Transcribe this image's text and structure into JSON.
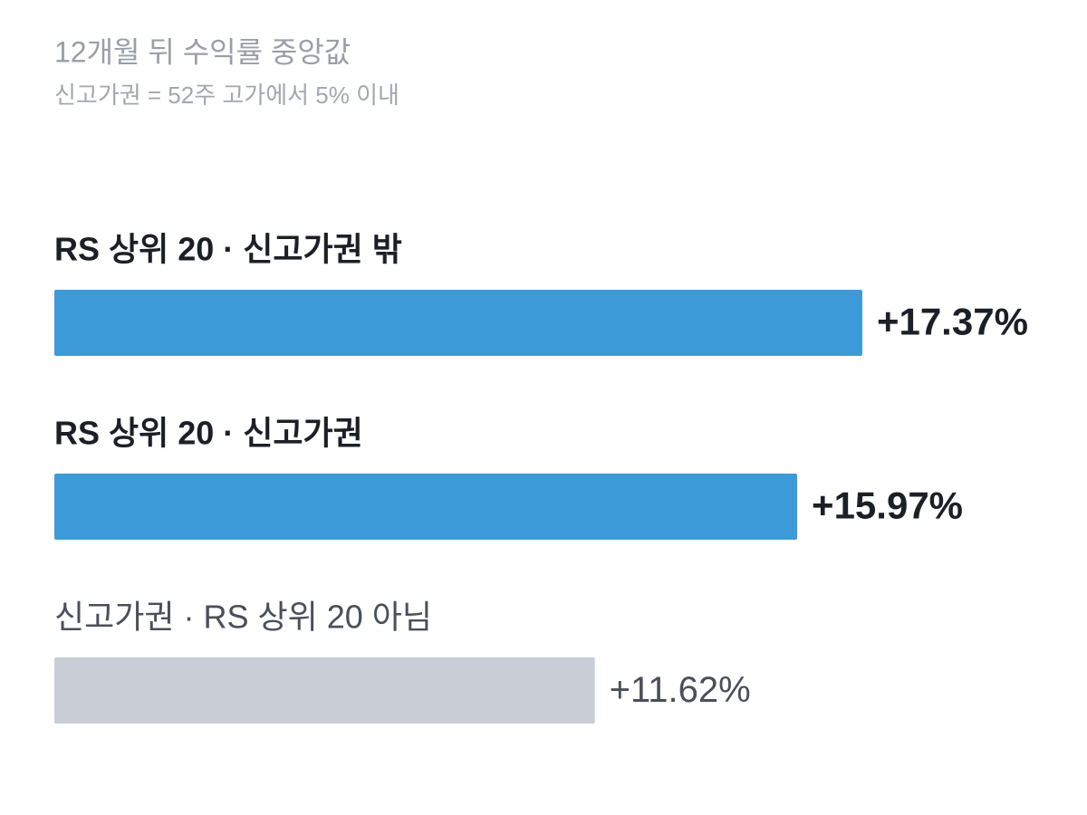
{
  "chart_data": {
    "type": "bar",
    "title": "12개월 뒤 수익률 중앙값",
    "subtitle": "신고가권 = 52주 고가에서 5% 이내",
    "categories": [
      "RS 상위 20 · 신고가권 밖",
      "RS 상위 20 · 신고가권",
      "신고가권 · RS 상위 20 아님"
    ],
    "values": [
      17.37,
      15.97,
      11.62
    ],
    "value_labels": [
      "+17.37%",
      "+15.97%",
      "+11.62%"
    ],
    "colors": [
      "#3d9ad8",
      "#3d9ad8",
      "#c8cdd6"
    ]
  }
}
